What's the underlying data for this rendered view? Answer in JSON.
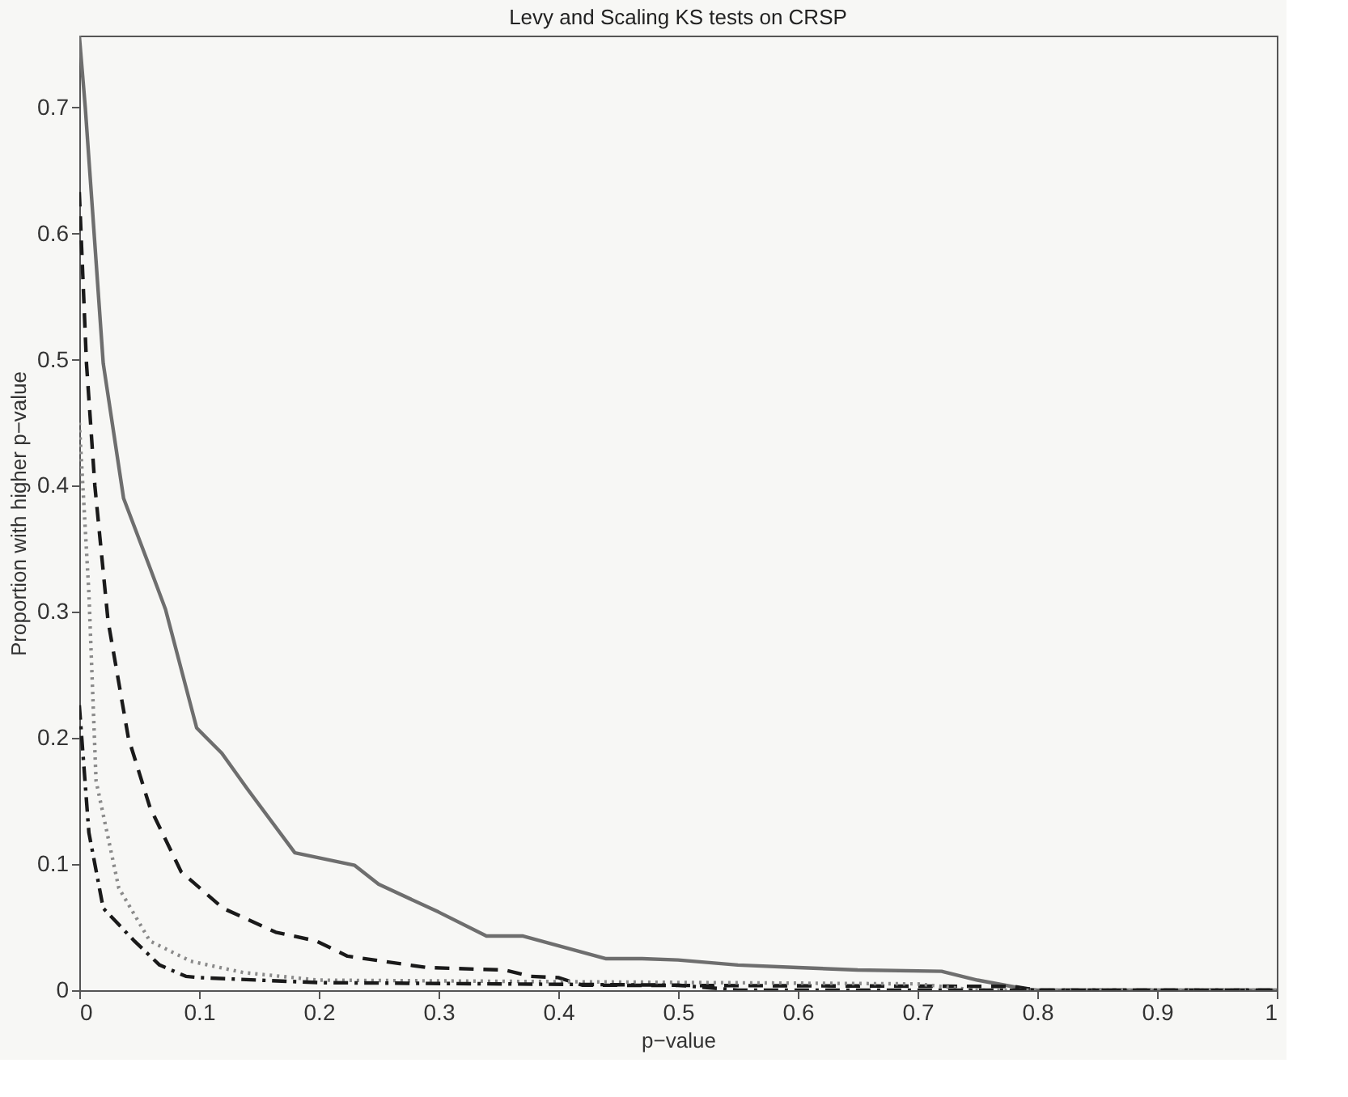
{
  "chart_data": {
    "type": "line",
    "title": "Levy and Scaling KS tests on CRSP",
    "xlabel": "p−value",
    "ylabel": "Proportion with higher p−value",
    "xlim": [
      0,
      1
    ],
    "ylim": [
      0,
      0.757
    ],
    "xticks": [
      0,
      0.1,
      0.2,
      0.3,
      0.4,
      0.5,
      0.6,
      0.7,
      0.8,
      0.9,
      1
    ],
    "yticks": [
      0,
      0.1,
      0.2,
      0.3,
      0.4,
      0.5,
      0.6,
      0.7
    ],
    "grid": false,
    "marker": "none",
    "series": [
      {
        "color": "#6e6e6e",
        "line_style": "solid",
        "x": [
          0,
          0.005,
          0.02,
          0.037,
          0.059,
          0.072,
          0.098,
          0.119,
          0.14,
          0.18,
          0.23,
          0.25,
          0.3,
          0.34,
          0.37,
          0.44,
          0.47,
          0.5,
          0.55,
          0.6,
          0.65,
          0.72,
          0.75,
          0.79,
          0.8,
          1
        ],
        "values": [
          0.757,
          0.7,
          0.497,
          0.39,
          0.335,
          0.302,
          0.208,
          0.188,
          0.16,
          0.109,
          0.099,
          0.084,
          0.062,
          0.043,
          0.043,
          0.025,
          0.025,
          0.024,
          0.02,
          0.018,
          0.016,
          0.015,
          0.008,
          0.001,
          0,
          0
        ]
      },
      {
        "color": "#1a1a1a",
        "line_style": "dashed",
        "x": [
          0,
          0.006,
          0.013,
          0.024,
          0.041,
          0.059,
          0.085,
          0.12,
          0.164,
          0.198,
          0.224,
          0.29,
          0.355,
          0.377,
          0.4,
          0.42,
          0.78,
          0.8,
          1
        ],
        "values": [
          0.633,
          0.497,
          0.4,
          0.293,
          0.2,
          0.145,
          0.094,
          0.065,
          0.046,
          0.039,
          0.027,
          0.018,
          0.016,
          0.011,
          0.01,
          0.004,
          0.003,
          0,
          0
        ]
      },
      {
        "color": "#8a8a8a",
        "line_style": "dotted",
        "x": [
          0,
          0.008,
          0.014,
          0.033,
          0.059,
          0.093,
          0.137,
          0.2,
          0.7,
          0.75,
          1
        ],
        "values": [
          0.45,
          0.315,
          0.166,
          0.081,
          0.039,
          0.023,
          0.014,
          0.008,
          0.005,
          0,
          0
        ]
      },
      {
        "color": "#1a1a1a",
        "line_style": "dashdot",
        "x": [
          0,
          0.008,
          0.02,
          0.046,
          0.067,
          0.089,
          0.1,
          0.2,
          0.5,
          0.55,
          1
        ],
        "values": [
          0.226,
          0.125,
          0.065,
          0.039,
          0.02,
          0.011,
          0.01,
          0.006,
          0.004,
          0,
          0
        ]
      }
    ]
  }
}
